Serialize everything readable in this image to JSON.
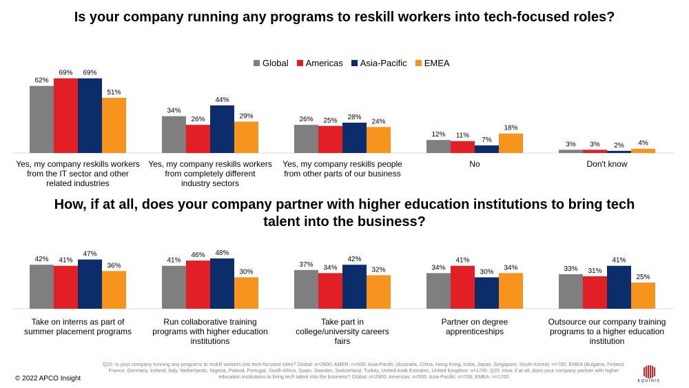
{
  "title1": "Is your company running any programs to reskill workers into tech-focused roles?",
  "title2": "How, if at all, does your company partner with higher education institutions to bring tech talent into the business?",
  "legend": [
    {
      "name": "Global",
      "color": "#7f7f7f"
    },
    {
      "name": "Americas",
      "color": "#e31f26"
    },
    {
      "name": "Asia-Pacific",
      "color": "#0c2d6b"
    },
    {
      "name": "EMEA",
      "color": "#f7941d"
    }
  ],
  "chart_data": [
    {
      "type": "bar",
      "title": "Is your company running any programs to reskill workers into tech-focused roles?",
      "categories": [
        "Yes, my company reskills workers from the IT sector and other related industries",
        "Yes, my company reskills workers from completely different industry sectors",
        "Yes, my company reskills people from other parts of our business",
        "No",
        "Don't know"
      ],
      "series": [
        {
          "name": "Global",
          "values": [
            62,
            34,
            26,
            12,
            3
          ]
        },
        {
          "name": "Americas",
          "values": [
            69,
            26,
            25,
            11,
            3
          ]
        },
        {
          "name": "Asia-Pacific",
          "values": [
            69,
            44,
            28,
            7,
            2
          ]
        },
        {
          "name": "EMEA",
          "values": [
            51,
            29,
            24,
            18,
            4
          ]
        }
      ],
      "value_suffix": "%",
      "ylim": [
        0,
        100
      ],
      "grid": false,
      "legend": "top-center"
    },
    {
      "type": "bar",
      "title": "How, if at all, does your company partner with higher education institutions to bring tech talent into the business?",
      "categories": [
        "Take on interns as part of summer placement programs",
        "Run collaborative training programs with higher education institutions",
        "Take part in college/university careers fairs",
        "Partner on degree apprenticeships",
        "Outsource our company training programs to a higher education institution"
      ],
      "series": [
        {
          "name": "Global",
          "values": [
            42,
            41,
            37,
            34,
            33
          ]
        },
        {
          "name": "Americas",
          "values": [
            41,
            46,
            34,
            41,
            31
          ]
        },
        {
          "name": "Asia-Pacific",
          "values": [
            47,
            48,
            42,
            30,
            41
          ]
        },
        {
          "name": "EMEA",
          "values": [
            36,
            30,
            32,
            34,
            25
          ]
        }
      ],
      "value_suffix": "%",
      "ylim": [
        0,
        100
      ],
      "grid": false
    }
  ],
  "footnote": "Q22: Is your company running any programs to reskill workers into tech-focused roles? Global: n=2900; AMER: n=500; Asia-Pacific (Australia, China, Hong Kong, India, Japan, Singapore, South Korea): n=700; EMEA (Bulgaria, Finland, France, Germany, Ireland, Italy, Netherlands, Nigeria, Poland, Portugal, South Africa, Spain, Sweden, Switzerland, Turkey, United Arab Emirates, United Kingdom: n=1700. Q25: How, if at all, does your company partner with higher education institutions to bring tech talent into the business? Global: n=2900; Americas: n=500; Asia-Pacific: n=700; EMEA: n=1700",
  "copyright": "© 2022 APCO Insight",
  "logo_text": "EQUINIX"
}
